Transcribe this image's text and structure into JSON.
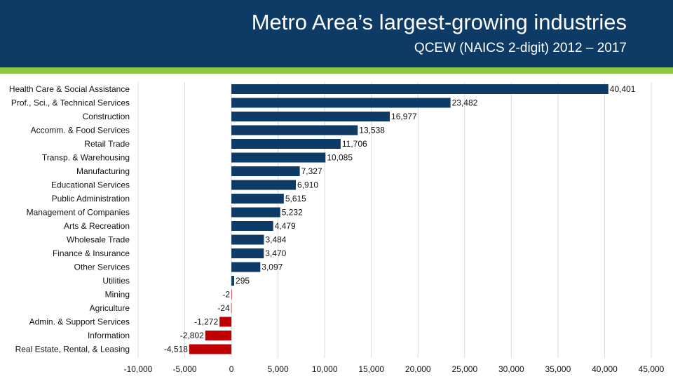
{
  "header": {
    "title": "Metro Area’s largest-growing industries",
    "subtitle": "QCEW (NAICS 2-digit) 2012 – 2017"
  },
  "colors": {
    "header_bg": "#0d3b66",
    "accent": "#8dc63f",
    "positive_bar": "#0d3b66",
    "negative_bar": "#c00000",
    "grid": "#d9d9d9"
  },
  "chart_data": {
    "type": "bar",
    "orientation": "horizontal",
    "title": "Metro Area’s largest-growing industries",
    "subtitle": "QCEW (NAICS 2-digit) 2012 – 2017",
    "xlabel": "",
    "ylabel": "",
    "xlim": [
      -10000,
      45000
    ],
    "grid": true,
    "ticks": [
      -10000,
      -5000,
      0,
      5000,
      10000,
      15000,
      20000,
      25000,
      30000,
      35000,
      40000,
      45000
    ],
    "tick_labels": [
      "-10,000",
      "-5,000",
      "0",
      "5,000",
      "10,000",
      "15,000",
      "20,000",
      "25,000",
      "30,000",
      "35,000",
      "40,000",
      "45,000"
    ],
    "categories": [
      "Health Care & Social Assistance",
      "Prof., Sci., & Technical Services",
      "Construction",
      "Accomm. & Food Services",
      "Retail Trade",
      "Transp. & Warehousing",
      "Manufacturing",
      "Educational Services",
      "Public Administration",
      "Management of Companies",
      "Arts & Recreation",
      "Wholesale Trade",
      "Finance & Insurance",
      "Other Services",
      "Utilities",
      "Mining",
      "Agriculture",
      "Admin. & Support Services",
      "Information",
      "Real Estate, Rental, & Leasing"
    ],
    "values": [
      40401,
      23482,
      16977,
      13538,
      11706,
      10085,
      7327,
      6910,
      5615,
      5232,
      4479,
      3484,
      3470,
      3097,
      295,
      -2,
      -24,
      -1272,
      -2802,
      -4518
    ],
    "value_labels": [
      "40,401",
      "23,482",
      "16,977",
      "13,538",
      "11,706",
      "10,085",
      "7,327",
      "6,910",
      "5,615",
      "5,232",
      "4,479",
      "3,484",
      "3,470",
      "3,097",
      "295",
      "-2",
      "-24",
      "-1,272",
      "-2,802",
      "-4,518"
    ]
  }
}
